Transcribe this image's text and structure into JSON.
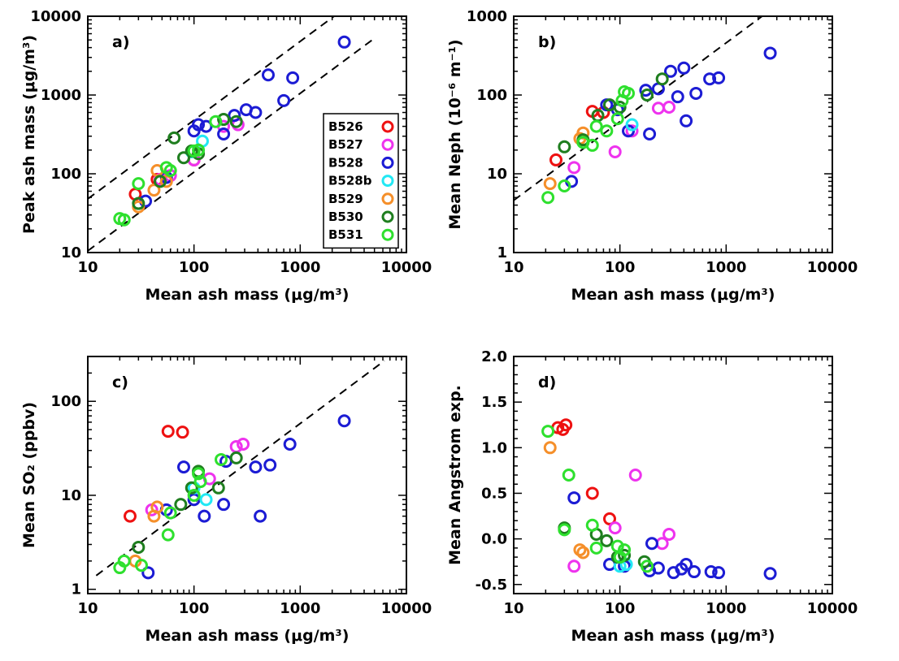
{
  "colors": {
    "B526": "#ee1111",
    "B527": "#ee33ee",
    "B528": "#1c1cd4",
    "B528b": "#22e8f4",
    "B529": "#f58f2a",
    "B530": "#1f7e1f",
    "B531": "#2ee02e"
  },
  "legend": [
    "B526",
    "B527",
    "B528",
    "B528b",
    "B529",
    "B530",
    "B531"
  ],
  "chart_data": [
    {
      "id": "a",
      "type": "scatter",
      "panel_label": "a)",
      "xlabel": "Mean ash mass (μg/m³)",
      "ylabel": "Peak ash mass (μg/m³)",
      "xscale": "log",
      "yscale": "log",
      "xlim": [
        10,
        10000
      ],
      "ylim": [
        10,
        10000
      ],
      "xticks": [
        10,
        100,
        1000,
        10000
      ],
      "xtick_labels": [
        "10",
        "100",
        "1000",
        "10000"
      ],
      "yticks": [
        10,
        100,
        1000,
        10000
      ],
      "ytick_labels": [
        "10",
        "100",
        "1000",
        "10000"
      ],
      "legend_position": "right-center",
      "ref_lines": [
        {
          "style": "dashed",
          "x": [
            10,
            5000
          ],
          "y": [
            48,
            24000
          ]
        },
        {
          "style": "dashed",
          "x": [
            10,
            5000
          ],
          "y": [
            10.5,
            5250
          ]
        }
      ],
      "series": [
        {
          "name": "B526",
          "x": [
            28,
            45,
            100
          ],
          "y": [
            55,
            85,
            150
          ]
        },
        {
          "name": "B527",
          "x": [
            48,
            60,
            100,
            190,
            260
          ],
          "y": [
            85,
            95,
            150,
            400,
            420
          ]
        },
        {
          "name": "B528",
          "x": [
            35,
            55,
            100,
            110,
            130,
            190,
            240,
            310,
            380,
            500,
            700,
            850,
            2600
          ],
          "y": [
            45,
            90,
            350,
            420,
            400,
            320,
            550,
            650,
            600,
            1800,
            850,
            1650,
            4700
          ]
        },
        {
          "name": "B528b",
          "x": [
            95,
            120
          ],
          "y": [
            190,
            260
          ]
        },
        {
          "name": "B529",
          "x": [
            30,
            42,
            45,
            55
          ],
          "y": [
            38,
            62,
            110,
            80
          ]
        },
        {
          "name": "B530",
          "x": [
            30,
            48,
            65,
            80,
            95,
            110,
            190,
            250
          ],
          "y": [
            42,
            80,
            285,
            160,
            195,
            180,
            490,
            460
          ]
        },
        {
          "name": "B531",
          "x": [
            20,
            22,
            30,
            55,
            60,
            100,
            110,
            160
          ],
          "y": [
            27,
            26,
            75,
            120,
            110,
            195,
            200,
            460
          ]
        }
      ]
    },
    {
      "id": "b",
      "type": "scatter",
      "panel_label": "b)",
      "xlabel": "Mean ash mass (μg/m³)",
      "ylabel": "Mean Neph (10⁻⁶ m⁻¹)",
      "xscale": "log",
      "yscale": "log",
      "xlim": [
        10,
        10000
      ],
      "ylim": [
        1,
        1000
      ],
      "xticks": [
        10,
        100,
        1000,
        10000
      ],
      "xtick_labels": [
        "10",
        "100",
        "1000",
        "10000"
      ],
      "yticks": [
        1,
        10,
        100,
        1000
      ],
      "ytick_labels": [
        "1",
        "10",
        "100",
        "1000"
      ],
      "ref_lines": [
        {
          "style": "dashed",
          "x": [
            10,
            2900
          ],
          "y": [
            4.6,
            1330
          ]
        }
      ],
      "series": [
        {
          "name": "B526",
          "x": [
            25,
            55,
            70
          ],
          "y": [
            15,
            62,
            60
          ]
        },
        {
          "name": "B527",
          "x": [
            37,
            90,
            130,
            230,
            290
          ],
          "y": [
            12,
            19,
            35,
            68,
            70
          ]
        },
        {
          "name": "B528",
          "x": [
            35,
            75,
            95,
            120,
            175,
            190,
            230,
            300,
            350,
            400,
            420,
            520,
            700,
            850,
            2600
          ],
          "y": [
            8,
            75,
            65,
            35,
            115,
            32,
            120,
            200,
            95,
            220,
            47,
            105,
            160,
            165,
            340
          ]
        },
        {
          "name": "B528b",
          "x": [
            130
          ],
          "y": [
            42
          ]
        },
        {
          "name": "B529",
          "x": [
            22,
            42,
            45
          ],
          "y": [
            7.5,
            28,
            33
          ]
        },
        {
          "name": "B530",
          "x": [
            30,
            45,
            62,
            80,
            100,
            180,
            250
          ],
          "y": [
            22,
            27,
            55,
            75,
            70,
            100,
            160
          ]
        },
        {
          "name": "B531",
          "x": [
            21,
            30,
            45,
            55,
            60,
            75,
            95,
            105,
            110,
            120
          ],
          "y": [
            5,
            7,
            25,
            23,
            40,
            35,
            50,
            85,
            110,
            105
          ]
        }
      ]
    },
    {
      "id": "c",
      "type": "scatter",
      "panel_label": "c)",
      "xlabel": "Mean ash mass (μg/m³)",
      "ylabel": "Mean SO₂ (ppbv)",
      "xscale": "log",
      "yscale": "log",
      "xlim": [
        10,
        10000
      ],
      "ylim": [
        0.9,
        300
      ],
      "xticks": [
        10,
        100,
        1000,
        10000
      ],
      "xtick_labels": [
        "10",
        "100",
        "1000",
        "10000"
      ],
      "yticks": [
        1,
        10,
        100
      ],
      "ytick_labels": [
        "1",
        "10",
        "100"
      ],
      "ref_lines": [
        {
          "style": "dashed",
          "x": [
            12,
            6200
          ],
          "y": [
            1.4,
            270
          ]
        }
      ],
      "series": [
        {
          "name": "B526",
          "x": [
            25,
            57,
            78
          ],
          "y": [
            6,
            48,
            47
          ]
        },
        {
          "name": "B527",
          "x": [
            40,
            140,
            250,
            290
          ],
          "y": [
            7,
            15,
            33,
            35
          ]
        },
        {
          "name": "B528",
          "x": [
            37,
            55,
            80,
            100,
            125,
            190,
            200,
            380,
            420,
            520,
            800,
            2600
          ],
          "y": [
            1.5,
            7,
            20,
            9,
            6,
            8,
            23,
            20,
            6,
            21,
            35,
            62
          ]
        },
        {
          "name": "B528b",
          "x": [
            100,
            130
          ],
          "y": [
            12,
            9
          ]
        },
        {
          "name": "B529",
          "x": [
            28,
            42,
            45
          ],
          "y": [
            2,
            6,
            7.5
          ]
        },
        {
          "name": "B530",
          "x": [
            30,
            75,
            95,
            110,
            170,
            250
          ],
          "y": [
            2.8,
            8,
            12,
            18,
            12,
            25
          ]
        },
        {
          "name": "B531",
          "x": [
            20,
            22,
            32,
            57,
            60,
            100,
            110,
            115,
            180
          ],
          "y": [
            1.7,
            2,
            1.8,
            3.8,
            6.5,
            10,
            17,
            14,
            24
          ]
        }
      ]
    },
    {
      "id": "d",
      "type": "scatter",
      "panel_label": "d)",
      "xlabel": "Mean ash mass (μg/m³)",
      "ylabel": "Mean Angstrom exp.",
      "xscale": "log",
      "yscale": "linear",
      "xlim": [
        10,
        10000
      ],
      "ylim": [
        -0.6,
        2.0
      ],
      "xticks": [
        10,
        100,
        1000,
        10000
      ],
      "xtick_labels": [
        "10",
        "100",
        "1000",
        "10000"
      ],
      "yticks": [
        -0.5,
        0,
        0.5,
        1.0,
        1.5,
        2.0
      ],
      "ytick_labels": [
        "-0.5",
        "0.0",
        "0.5",
        "1.0",
        "1.5",
        "2.0"
      ],
      "ref_lines": [],
      "series": [
        {
          "name": "B526",
          "x": [
            26,
            29,
            31,
            55,
            80
          ],
          "y": [
            1.22,
            1.2,
            1.25,
            0.5,
            0.22
          ]
        },
        {
          "name": "B527",
          "x": [
            37,
            90,
            140,
            250,
            290
          ],
          "y": [
            -0.3,
            0.12,
            0.7,
            -0.05,
            0.05
          ]
        },
        {
          "name": "B528",
          "x": [
            37,
            80,
            110,
            190,
            200,
            230,
            320,
            380,
            420,
            500,
            720,
            850,
            2600
          ],
          "y": [
            0.45,
            -0.28,
            -0.3,
            -0.35,
            -0.05,
            -0.32,
            -0.37,
            -0.33,
            -0.28,
            -0.36,
            -0.36,
            -0.37,
            -0.38
          ]
        },
        {
          "name": "B528b",
          "x": [
            100,
            115
          ],
          "y": [
            -0.3,
            -0.28
          ]
        },
        {
          "name": "B529",
          "x": [
            22,
            42,
            45
          ],
          "y": [
            1.0,
            -0.12,
            -0.15
          ]
        },
        {
          "name": "B530",
          "x": [
            30,
            60,
            75,
            95,
            110,
            170
          ],
          "y": [
            0.12,
            0.05,
            -0.02,
            -0.2,
            -0.18,
            -0.25
          ]
        },
        {
          "name": "B531",
          "x": [
            21,
            30,
            33,
            55,
            60,
            95,
            100,
            110,
            180
          ],
          "y": [
            1.18,
            0.1,
            0.7,
            0.15,
            -0.1,
            -0.08,
            -0.2,
            -0.12,
            -0.3
          ]
        }
      ]
    }
  ]
}
